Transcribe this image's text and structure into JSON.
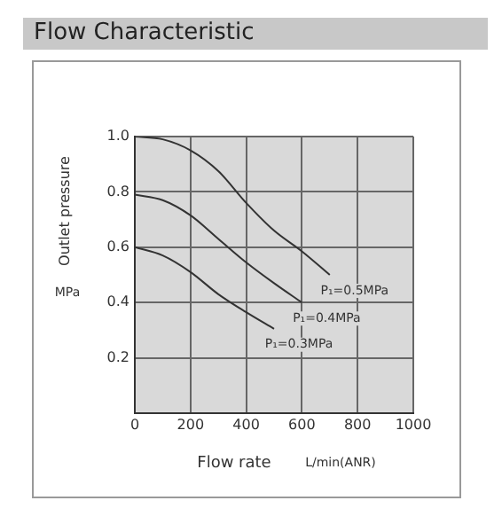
{
  "chart_data": {
    "type": "line",
    "title": "Flow Characteristic",
    "xlabel": "Flow rate",
    "ylabel": "Outlet pressure",
    "annotations": [
      "MPa",
      "L/min(ANR)"
    ],
    "xlim": [
      0,
      1000
    ],
    "xticks": [
      0,
      200,
      400,
      600,
      800,
      1000
    ],
    "ylim": [
      0,
      1.0
    ],
    "yticks": [
      {
        "value": 0,
        "label": null
      },
      0.2,
      0.4,
      0.6,
      {
        "value": 0.8,
        "label": "0.8"
      },
      {
        "value": 1.0,
        "label": "1.0"
      }
    ],
    "grid": true,
    "legend": false,
    "marker": "none",
    "line_style": "solid",
    "series": [
      {
        "name": "P₁=0.5MPa",
        "color": "#333333",
        "x": [
          0,
          100,
          200,
          300,
          400,
          500,
          600,
          700
        ],
        "values": [
          1.0,
          0.99,
          0.95,
          0.875,
          0.76,
          0.66,
          0.585,
          0.5
        ]
      },
      {
        "name": "P₁=0.4MPa",
        "color": "#333333",
        "x": [
          0,
          100,
          200,
          300,
          400,
          500,
          600
        ],
        "values": [
          0.79,
          0.77,
          0.715,
          0.63,
          0.545,
          0.47,
          0.4
        ]
      },
      {
        "name": "P₁=0.3MPa",
        "color": "#333333",
        "x": [
          0,
          100,
          200,
          300,
          400,
          500
        ],
        "values": [
          0.6,
          0.57,
          0.51,
          0.43,
          0.365,
          0.305
        ]
      }
    ]
  }
}
